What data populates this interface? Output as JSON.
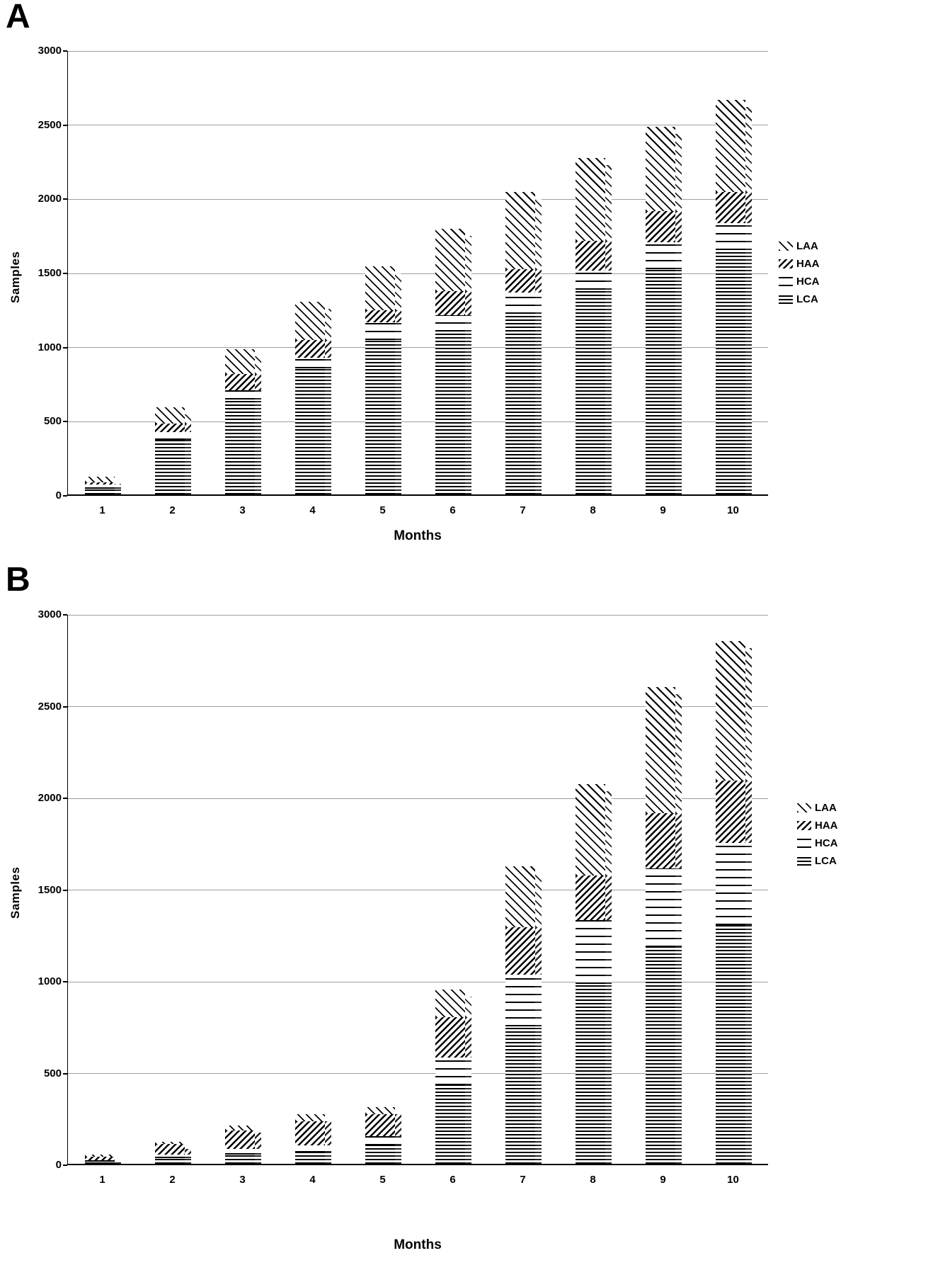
{
  "figure": {
    "background": "#ffffff",
    "text_color": "#000000",
    "gridline_color": "#9f9f9f"
  },
  "chart_data": [
    {
      "type": "bar",
      "stacked": true,
      "panel_label": "A",
      "xlabel": "Months",
      "ylabel": "Samples",
      "ylim": [
        0,
        3000
      ],
      "y_ticks": [
        0,
        500,
        1000,
        1500,
        2000,
        2500,
        3000
      ],
      "grid": true,
      "legend_position": "right",
      "legend_labels": [
        "LAA",
        "HAA",
        "HCA",
        "LCA"
      ],
      "categories": [
        "1",
        "2",
        "3",
        "4",
        "5",
        "6",
        "7",
        "8",
        "9",
        "10"
      ],
      "stack_order": "bottom_to_top",
      "series": [
        {
          "name": "LCA",
          "pattern": "dense-horizontal-stripes",
          "values": [
            40,
            370,
            640,
            850,
            1040,
            1100,
            1220,
            1380,
            1520,
            1650
          ]
        },
        {
          "name": "HCA",
          "pattern": "sparse-horizontal-lines",
          "values": [
            25,
            50,
            60,
            70,
            120,
            110,
            140,
            130,
            180,
            180
          ]
        },
        {
          "name": "HAA",
          "pattern": "dense-diagonal-hatch",
          "values": [
            15,
            60,
            110,
            120,
            80,
            160,
            160,
            200,
            210,
            210
          ]
        },
        {
          "name": "LAA",
          "pattern": "sparse-diagonal-lines",
          "values": [
            40,
            110,
            170,
            260,
            300,
            420,
            520,
            560,
            570,
            620
          ]
        }
      ]
    },
    {
      "type": "bar",
      "stacked": true,
      "panel_label": "B",
      "xlabel": "Months",
      "ylabel": "Samples",
      "ylim": [
        0,
        3000
      ],
      "y_ticks": [
        0,
        500,
        1000,
        1500,
        2000,
        2500,
        3000
      ],
      "grid": true,
      "legend_position": "right",
      "legend_labels": [
        "LAA",
        "HAA",
        "HCA",
        "LCA"
      ],
      "categories": [
        "1",
        "2",
        "3",
        "4",
        "5",
        "6",
        "7",
        "8",
        "9",
        "10"
      ],
      "stack_order": "bottom_to_top",
      "series": [
        {
          "name": "LCA",
          "pattern": "dense-horizontal-stripes",
          "values": [
            10,
            30,
            50,
            60,
            100,
            430,
            750,
            980,
            1180,
            1300
          ]
        },
        {
          "name": "HCA",
          "pattern": "sparse-horizontal-lines",
          "values": [
            10,
            20,
            30,
            40,
            50,
            150,
            280,
            350,
            430,
            450
          ]
        },
        {
          "name": "HAA",
          "pattern": "dense-diagonal-hatch",
          "values": [
            20,
            60,
            100,
            130,
            120,
            220,
            260,
            240,
            300,
            340
          ]
        },
        {
          "name": "LAA",
          "pattern": "sparse-diagonal-lines",
          "values": [
            10,
            10,
            30,
            40,
            40,
            150,
            330,
            500,
            690,
            760
          ]
        }
      ]
    }
  ]
}
